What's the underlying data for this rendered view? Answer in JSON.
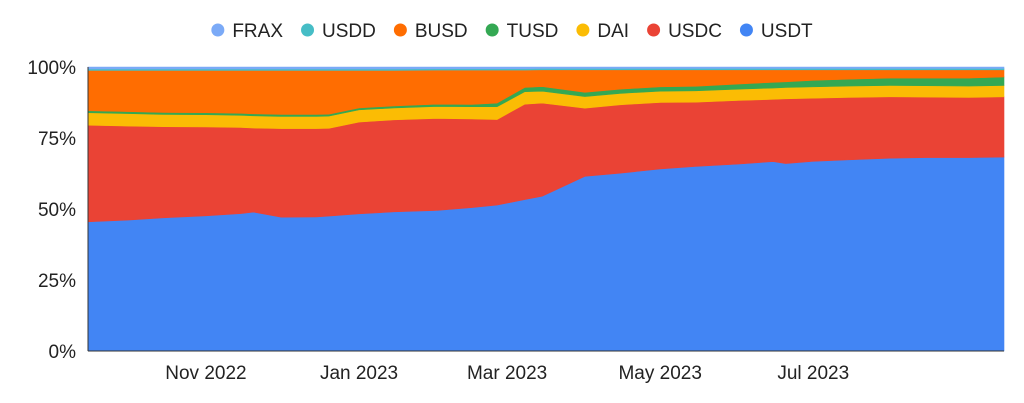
{
  "chart_data": {
    "type": "area",
    "stacked": "percent",
    "title": "",
    "xlabel": "",
    "ylabel": "",
    "ylim": [
      0,
      100
    ],
    "yticks": [
      "0%",
      "25%",
      "50%",
      "75%",
      "100%"
    ],
    "xticks": [
      {
        "label": "Nov 2022",
        "date": "2022-11-01"
      },
      {
        "label": "Jan 2023",
        "date": "2023-01-01"
      },
      {
        "label": "Mar 2023",
        "date": "2023-03-01"
      },
      {
        "label": "May 2023",
        "date": "2023-05-01"
      },
      {
        "label": "Jul 2023",
        "date": "2023-07-01"
      }
    ],
    "legend_position": "top",
    "legend_order": [
      "FRAX",
      "USDD",
      "BUSD",
      "TUSD",
      "DAI",
      "USDC",
      "USDT"
    ],
    "x": [
      "2022-09-15",
      "2022-10-01",
      "2022-10-15",
      "2022-11-01",
      "2022-11-15",
      "2022-11-20",
      "2022-12-01",
      "2022-12-15",
      "2022-12-20",
      "2023-01-01",
      "2023-01-15",
      "2023-02-01",
      "2023-02-15",
      "2023-02-25",
      "2023-03-08",
      "2023-03-15",
      "2023-04-01",
      "2023-04-15",
      "2023-05-01",
      "2023-05-15",
      "2023-06-01",
      "2023-06-15",
      "2023-06-20",
      "2023-07-01",
      "2023-07-15",
      "2023-08-01",
      "2023-08-15",
      "2023-09-01",
      "2023-09-15"
    ],
    "series": [
      {
        "name": "USDT",
        "color": "#4285f4",
        "values": [
          45.5,
          46.1,
          46.9,
          47.6,
          48.4,
          48.9,
          47.1,
          47.2,
          47.5,
          48.3,
          49.0,
          49.5,
          50.5,
          51.4,
          53.3,
          54.5,
          61.5,
          62.6,
          64.1,
          65.0,
          65.8,
          66.7,
          66.0,
          66.8,
          67.3,
          67.9,
          68.1,
          68.1,
          68.3
        ]
      },
      {
        "name": "USDC",
        "color": "#ea4335",
        "values": [
          34.0,
          33.1,
          32.1,
          31.3,
          30.3,
          29.6,
          31.2,
          31.1,
          30.9,
          32.3,
          32.4,
          32.4,
          31.2,
          30.1,
          33.6,
          32.8,
          24.0,
          24.1,
          23.4,
          22.6,
          22.4,
          21.9,
          22.8,
          22.2,
          22.0,
          21.6,
          21.3,
          21.2,
          21.2
        ]
      },
      {
        "name": "DAI",
        "color": "#fbbc04",
        "values": [
          4.4,
          4.4,
          4.3,
          4.3,
          4.3,
          4.3,
          4.3,
          4.3,
          4.3,
          4.3,
          4.2,
          4.2,
          4.3,
          4.5,
          4.4,
          4.2,
          4.1,
          4.0,
          4.0,
          4.0,
          4.0,
          4.0,
          4.0,
          4.0,
          4.0,
          4.0,
          4.0,
          4.0,
          4.0
        ]
      },
      {
        "name": "TUSD",
        "color": "#34a853",
        "values": [
          0.7,
          0.7,
          0.7,
          0.7,
          0.7,
          0.7,
          0.7,
          0.7,
          0.7,
          0.7,
          0.7,
          0.8,
          0.8,
          1.3,
          1.5,
          1.6,
          1.5,
          1.5,
          1.5,
          1.6,
          1.8,
          2.0,
          2.0,
          2.3,
          2.4,
          2.6,
          2.7,
          2.8,
          3.0
        ]
      },
      {
        "name": "BUSD",
        "color": "#ff6d01",
        "values": [
          14.2,
          14.5,
          14.8,
          14.9,
          15.1,
          15.3,
          15.5,
          15.5,
          15.4,
          13.2,
          12.5,
          12.0,
          12.1,
          11.6,
          6.1,
          5.9,
          7.9,
          6.8,
          6.0,
          5.8,
          5.0,
          4.4,
          4.2,
          3.7,
          3.3,
          2.9,
          2.9,
          2.9,
          2.5
        ]
      },
      {
        "name": "USDD",
        "color": "#46bdc6",
        "values": [
          0.5,
          0.5,
          0.5,
          0.5,
          0.5,
          0.5,
          0.5,
          0.5,
          0.5,
          0.5,
          0.5,
          0.5,
          0.5,
          0.5,
          0.5,
          0.5,
          0.5,
          0.5,
          0.5,
          0.5,
          0.5,
          0.5,
          0.5,
          0.5,
          0.5,
          0.5,
          0.5,
          0.5,
          0.5
        ]
      },
      {
        "name": "FRAX",
        "color": "#7baaf7",
        "values": [
          0.7,
          0.7,
          0.7,
          0.7,
          0.7,
          0.7,
          0.7,
          0.7,
          0.7,
          0.7,
          0.7,
          0.6,
          0.6,
          0.6,
          0.6,
          0.5,
          0.5,
          0.5,
          0.5,
          0.5,
          0.5,
          0.5,
          0.5,
          0.5,
          0.5,
          0.5,
          0.5,
          0.5,
          0.5
        ]
      }
    ]
  }
}
